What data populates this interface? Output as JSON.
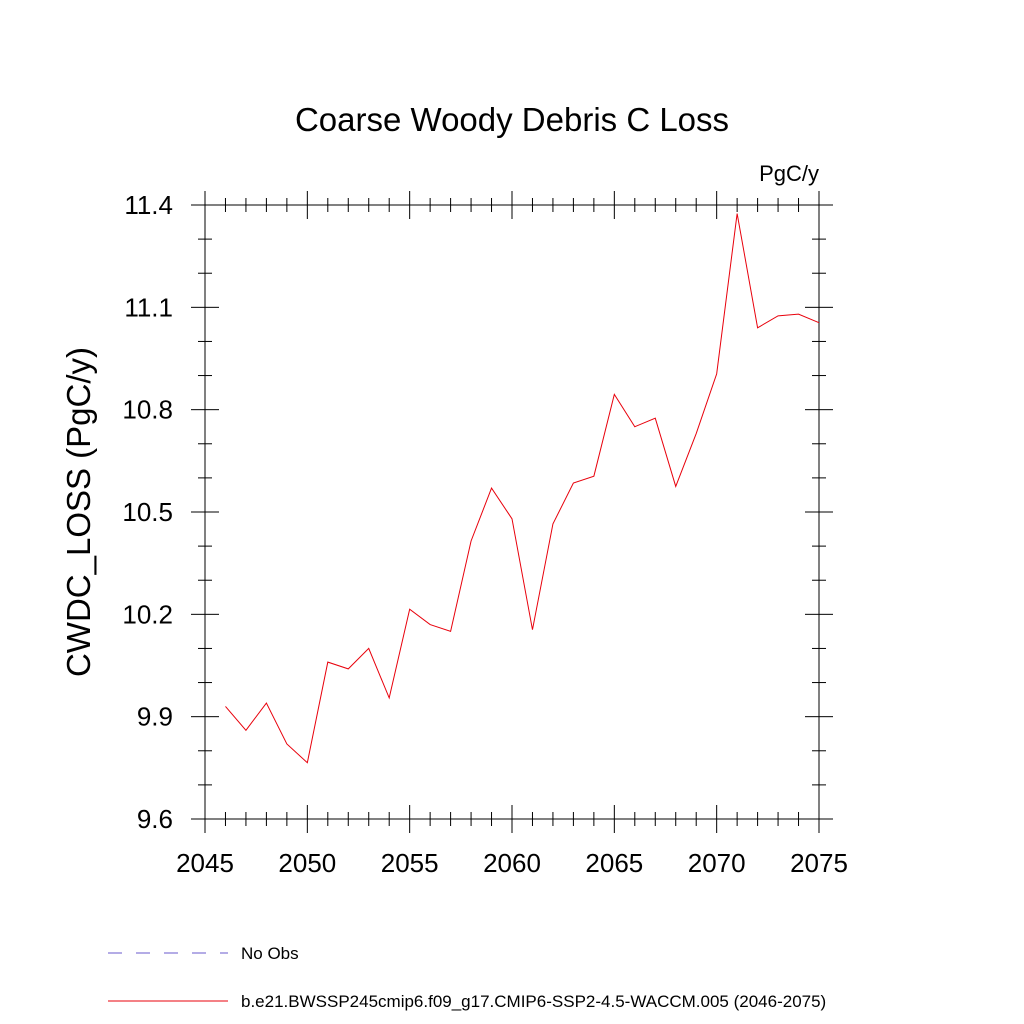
{
  "chart_data": {
    "type": "line",
    "title": "Coarse Woody Debris C Loss",
    "units": "PgC/y",
    "ylabel": "CWDC_LOSS  (PgC/y)",
    "xlabel": "",
    "xlim": [
      2045,
      2075
    ],
    "ylim": [
      9.6,
      11.4
    ],
    "x_ticks": [
      "2045",
      "2050",
      "2055",
      "2060",
      "2065",
      "2070",
      "2075"
    ],
    "y_ticks": [
      "9.6",
      "9.9",
      "10.2",
      "10.5",
      "10.8",
      "11.1",
      "11.4"
    ],
    "grid": false,
    "legend_position": "bottom",
    "legend": [
      {
        "label": "No Obs",
        "color": "#6a5acd",
        "style": "dashed"
      },
      {
        "label": "b.e21.BWSSP245cmip6.f09_g17.CMIP6-SSP2-4.5-WACCM.005 (2046-2075)",
        "color": "#e8000b",
        "style": "solid"
      }
    ],
    "series": [
      {
        "color": "#e8000b",
        "x": [
          2046,
          2047,
          2048,
          2049,
          2050,
          2051,
          2052,
          2053,
          2054,
          2055,
          2056,
          2057,
          2058,
          2059,
          2060,
          2061,
          2062,
          2063,
          2064,
          2065,
          2066,
          2067,
          2068,
          2069,
          2070,
          2071,
          2072,
          2073,
          2074,
          2075
        ],
        "values": [
          9.93,
          9.86,
          9.94,
          9.82,
          9.765,
          10.06,
          10.04,
          10.1,
          9.955,
          10.215,
          10.17,
          10.15,
          10.415,
          10.57,
          10.48,
          10.155,
          10.465,
          10.585,
          10.605,
          10.845,
          10.75,
          10.775,
          10.575,
          10.73,
          10.905,
          11.375,
          11.04,
          11.075,
          11.08,
          11.055
        ]
      }
    ]
  }
}
